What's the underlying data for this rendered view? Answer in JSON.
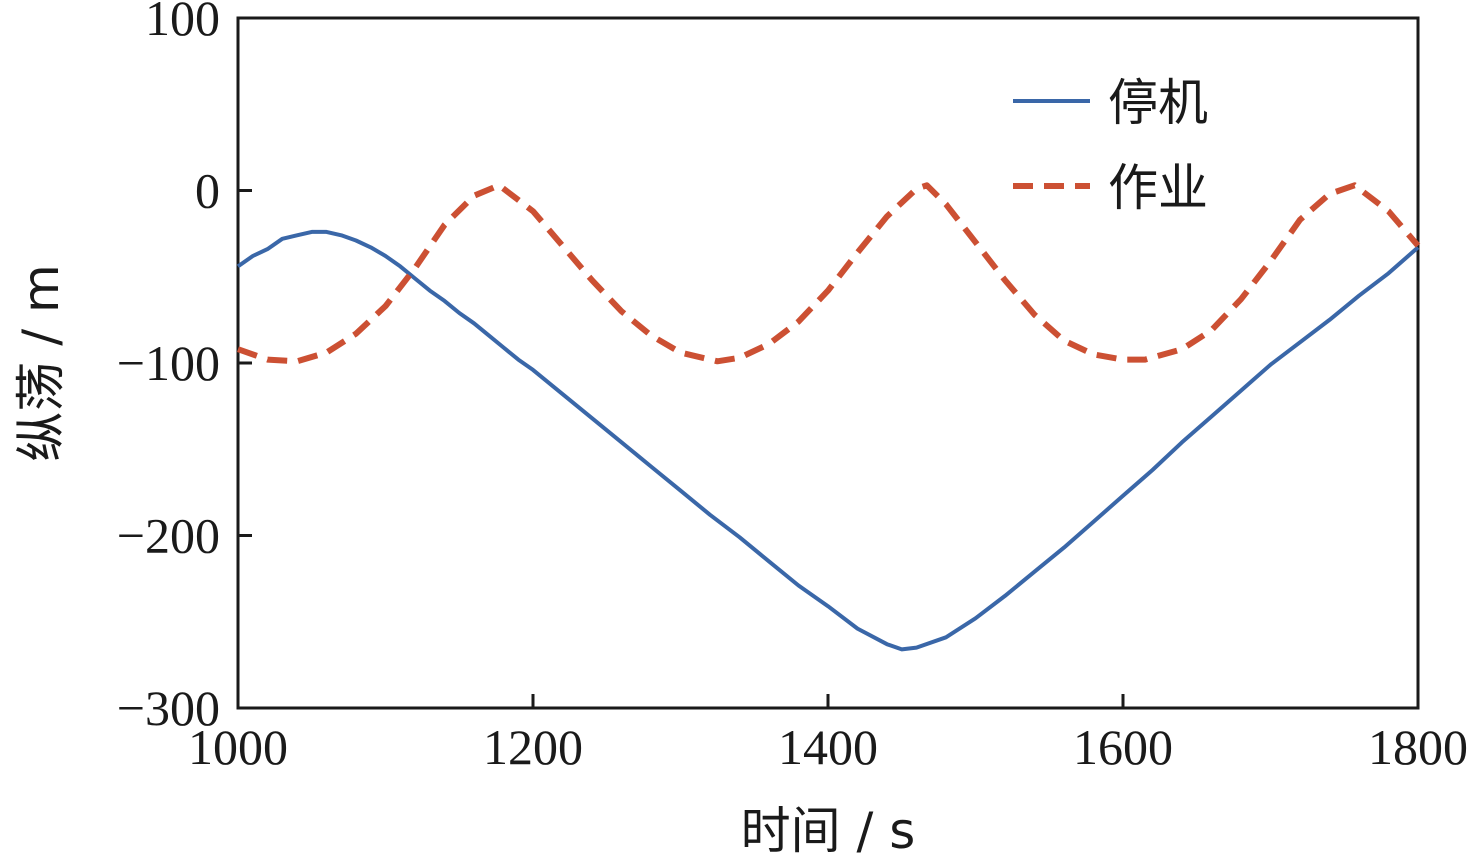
{
  "chart_data": {
    "type": "line",
    "title": "",
    "xlabel": "时间 / s",
    "ylabel": "纵荡 / m",
    "xlim": [
      1000,
      1800
    ],
    "ylim": [
      -300,
      100
    ],
    "xticks": [
      1000,
      1200,
      1400,
      1600,
      1800
    ],
    "yticks": [
      -300,
      -200,
      -100,
      0,
      100
    ],
    "xtick_labels": [
      "1000",
      "1200",
      "1400",
      "1600",
      "1800"
    ],
    "ytick_labels": [
      "−300",
      "−200",
      "−100",
      "0",
      "100"
    ],
    "grid": false,
    "legend_position": "top-right",
    "series": [
      {
        "name": "停机",
        "style": "solid",
        "color": "#3a67a8",
        "x": [
          1000,
          1010,
          1020,
          1030,
          1040,
          1050,
          1060,
          1070,
          1080,
          1090,
          1100,
          1110,
          1120,
          1130,
          1140,
          1150,
          1160,
          1170,
          1180,
          1190,
          1200,
          1220,
          1240,
          1260,
          1280,
          1300,
          1320,
          1340,
          1360,
          1380,
          1400,
          1420,
          1440,
          1450,
          1460,
          1480,
          1500,
          1520,
          1540,
          1560,
          1580,
          1600,
          1620,
          1640,
          1660,
          1680,
          1700,
          1720,
          1740,
          1760,
          1780,
          1800
        ],
        "y": [
          -44,
          -38,
          -34,
          -28,
          -26,
          -24,
          -24,
          -26,
          -29,
          -33,
          -38,
          -44,
          -51,
          -58,
          -64,
          -71,
          -77,
          -84,
          -91,
          -98,
          -104,
          -118,
          -132,
          -146,
          -160,
          -174,
          -188,
          -201,
          -215,
          -229,
          -241,
          -254,
          -263,
          -266,
          -265,
          -259,
          -248,
          -235,
          -221,
          -207,
          -192,
          -177,
          -162,
          -146,
          -131,
          -116,
          -101,
          -88,
          -75,
          -61,
          -48,
          -33
        ]
      },
      {
        "name": "作业",
        "style": "dashed",
        "color": "#cc5033",
        "x": [
          1000,
          1020,
          1040,
          1060,
          1080,
          1100,
          1120,
          1140,
          1160,
          1177,
          1200,
          1220,
          1240,
          1260,
          1280,
          1300,
          1325,
          1340,
          1360,
          1380,
          1400,
          1420,
          1440,
          1460,
          1467,
          1480,
          1500,
          1520,
          1540,
          1560,
          1580,
          1600,
          1615,
          1640,
          1660,
          1680,
          1700,
          1720,
          1740,
          1757,
          1780,
          1800
        ],
        "y": [
          -92,
          -98,
          -99,
          -94,
          -83,
          -67,
          -45,
          -20,
          -3,
          3,
          -12,
          -32,
          -52,
          -70,
          -84,
          -94,
          -99,
          -97,
          -89,
          -76,
          -58,
          -36,
          -15,
          1,
          3,
          -8,
          -30,
          -52,
          -72,
          -87,
          -95,
          -98,
          -98,
          -92,
          -81,
          -63,
          -41,
          -17,
          -2,
          3,
          -12,
          -32
        ]
      }
    ]
  }
}
